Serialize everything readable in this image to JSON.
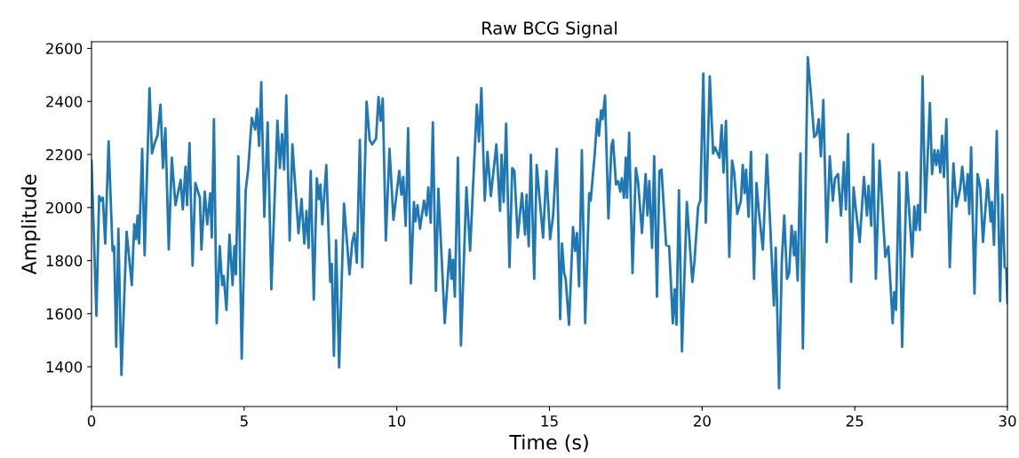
{
  "chart_data": {
    "type": "line",
    "title": "Raw BCG Signal",
    "xlabel": "Time (s)",
    "ylabel": "Amplitude",
    "x": [
      0,
      0.16,
      0.25,
      0.32,
      0.37,
      0.45,
      0.56,
      0.69,
      0.74,
      0.81,
      0.88,
      0.98,
      1.15,
      1.32,
      1.4,
      1.46,
      1.51,
      1.56,
      1.66,
      1.74,
      1.9,
      1.98,
      2.07,
      2.16,
      2.26,
      2.34,
      2.42,
      2.53,
      2.63,
      2.75,
      2.92,
      2.99,
      3.08,
      3.13,
      3.21,
      3.31,
      3.4,
      3.55,
      3.6,
      3.71,
      3.79,
      3.89,
      3.94,
      4.01,
      4.1,
      4.2,
      4.28,
      4.33,
      4.42,
      4.52,
      4.62,
      4.68,
      4.73,
      4.81,
      4.92,
      5.05,
      5.13,
      5.25,
      5.36,
      5.42,
      5.49,
      5.56,
      5.66,
      5.77,
      5.89,
      6.09,
      6.17,
      6.24,
      6.31,
      6.38,
      6.49,
      6.58,
      6.78,
      6.88,
      6.97,
      7.04,
      7.11,
      7.18,
      7.28,
      7.38,
      7.45,
      7.5,
      7.56,
      7.69,
      7.82,
      7.87,
      7.94,
      8.01,
      8.11,
      8.27,
      8.45,
      8.54,
      8.61,
      8.69,
      8.79,
      8.87,
      9.01,
      9.11,
      9.19,
      9.32,
      9.4,
      9.47,
      9.54,
      9.64,
      9.76,
      9.89,
      10.08,
      10.15,
      10.21,
      10.29,
      10.37,
      10.46,
      10.56,
      10.61,
      10.68,
      10.76,
      10.89,
      10.97,
      11.03,
      11.11,
      11.18,
      11.28,
      11.36,
      11.57,
      11.73,
      11.79,
      11.84,
      11.9,
      12.0,
      12.1,
      12.28,
      12.4,
      12.62,
      12.69,
      12.77,
      12.88,
      12.97,
      13.08,
      13.26,
      13.38,
      13.43,
      13.5,
      13.58,
      13.69,
      13.78,
      13.85,
      13.96,
      14.1,
      14.2,
      14.25,
      14.32,
      14.39,
      14.5,
      14.58,
      14.79,
      14.9,
      15.02,
      15.12,
      15.24,
      15.35,
      15.41,
      15.48,
      15.53,
      15.64,
      15.77,
      15.84,
      15.9,
      15.97,
      16.06,
      16.17,
      16.3,
      16.35,
      16.48,
      16.56,
      16.62,
      16.69,
      16.74,
      16.82,
      16.93,
      17.03,
      17.08,
      17.18,
      17.25,
      17.32,
      17.37,
      17.44,
      17.5,
      17.54,
      17.61,
      17.72,
      17.83,
      17.9,
      18.03,
      18.15,
      18.21,
      18.27,
      18.36,
      18.43,
      18.52,
      18.6,
      18.67,
      18.82,
      18.92,
      19.04,
      19.1,
      19.16,
      19.24,
      19.34,
      19.5,
      19.68,
      19.75,
      19.87,
      19.94,
      20.04,
      20.12,
      20.25,
      20.36,
      20.42,
      20.57,
      20.64,
      20.7,
      20.78,
      20.89,
      20.98,
      21.05,
      21.15,
      21.27,
      21.33,
      21.39,
      21.44,
      21.52,
      21.6,
      21.7,
      21.78,
      21.85,
      21.99,
      22.12,
      22.24,
      22.35,
      22.41,
      22.52,
      22.61,
      22.69,
      22.78,
      22.85,
      22.93,
      23.01,
      23.05,
      23.13,
      23.22,
      23.3,
      23.46,
      23.56,
      23.67,
      23.75,
      23.82,
      23.89,
      23.97,
      24.08,
      24.18,
      24.28,
      24.35,
      24.45,
      24.55,
      24.64,
      24.71,
      24.78,
      24.88,
      24.96,
      25.03,
      25.16,
      25.3,
      25.4,
      25.45,
      25.54,
      25.6,
      25.69,
      25.81,
      26.0,
      26.1,
      26.24,
      26.29,
      26.35,
      26.45,
      26.55,
      26.7,
      26.88,
      26.95,
      27.0,
      27.07,
      27.13,
      27.22,
      27.31,
      27.46,
      27.53,
      27.61,
      27.67,
      27.73,
      27.8,
      27.86,
      27.92,
      28.0,
      28.11,
      28.23,
      28.33,
      28.45,
      28.52,
      28.62,
      28.7,
      28.75,
      28.81,
      28.92,
      29.02,
      29.11,
      29.2,
      29.35,
      29.45,
      29.49,
      29.56,
      29.65,
      29.76,
      29.83,
      29.91,
      29.96,
      30.0
    ],
    "series": [
      {
        "color": "#1f77b4",
        "values": [
          2177,
          1592,
          2043,
          2026,
          2037,
          1864,
          2249,
          1837,
          1854,
          1475,
          1920,
          1369,
          1909,
          1708,
          1937,
          1881,
          1970,
          1864,
          2221,
          1820,
          2450,
          2204,
          2243,
          2271,
          2388,
          2149,
          2299,
          1842,
          2188,
          2009,
          2104,
          1993,
          2154,
          2009,
          2243,
          1781,
          2093,
          2037,
          1842,
          2060,
          1937,
          2054,
          1887,
          2333,
          1564,
          1854,
          1708,
          1742,
          1614,
          1898,
          1708,
          1854,
          1748,
          2193,
          1430,
          2065,
          2143,
          2338,
          2294,
          2372,
          2232,
          2472,
          1965,
          2321,
          1692,
          2327,
          2149,
          2277,
          2143,
          2422,
          1876,
          2238,
          1903,
          2032,
          1864,
          1987,
          1848,
          2138,
          1653,
          2110,
          2032,
          2087,
          1937,
          2160,
          1720,
          1787,
          1441,
          1876,
          1397,
          2015,
          1748,
          1870,
          1904,
          1792,
          2255,
          1775,
          2399,
          2255,
          2238,
          2260,
          2416,
          2327,
          2411,
          1876,
          2221,
          1954,
          2138,
          2048,
          2115,
          1931,
          2299,
          1714,
          2021,
          1948,
          2009,
          1920,
          2026,
          1970,
          2076,
          1943,
          2321,
          1686,
          2071,
          1564,
          1842,
          1731,
          1803,
          1664,
          2188,
          1480,
          2076,
          1837,
          2388,
          2249,
          2450,
          2026,
          2210,
          2043,
          2238,
          1987,
          2199,
          2021,
          2316,
          1775,
          2149,
          2138,
          1887,
          2054,
          1898,
          2048,
          1854,
          2199,
          1731,
          2160,
          1887,
          2138,
          1881,
          1970,
          2221,
          1580,
          1864,
          1753,
          1731,
          1558,
          1926,
          1837,
          1904,
          1703,
          2216,
          1564,
          2054,
          2026,
          2199,
          2333,
          2271,
          2366,
          2333,
          2422,
          1959,
          2232,
          2255,
          2087,
          2099,
          2060,
          2110,
          2037,
          2188,
          2037,
          2282,
          1753,
          2149,
          2099,
          1904,
          2126,
          1970,
          2099,
          1848,
          2193,
          1664,
          2138,
          2143,
          1859,
          1854,
          1564,
          1692,
          1558,
          2065,
          1458,
          2021,
          1720,
          1798,
          2004,
          2026,
          2505,
          1943,
          2494,
          2204,
          2227,
          2188,
          2310,
          2132,
          2327,
          1814,
          2177,
          2132,
          1976,
          2026,
          2160,
          2054,
          2143,
          1965,
          2210,
          1731,
          2093,
          1993,
          1842,
          2199,
          1909,
          1631,
          1848,
          1319,
          1798,
          1970,
          1731,
          1753,
          1931,
          1820,
          1909,
          1725,
          2204,
          1469,
          2567,
          2433,
          2266,
          2277,
          2333,
          2193,
          2405,
          1870,
          2193,
          2026,
          2110,
          2126,
          1970,
          2171,
          1993,
          2277,
          1720,
          2076,
          1998,
          1870,
          2115,
          1970,
          2082,
          1931,
          2238,
          1731,
          2177,
          1814,
          1853,
          1564,
          1681,
          1614,
          2132,
          1475,
          2132,
          1814,
          2004,
          1915,
          2009,
          1915,
          2494,
          1982,
          2394,
          2126,
          2216,
          2160,
          2216,
          2132,
          2271,
          2115,
          2333,
          1775,
          2166,
          2004,
          2071,
          2154,
          2026,
          2126,
          1976,
          2227,
          1675,
          2126,
          2076,
          1870,
          2104,
          1948,
          2021,
          1859,
          2288,
          1647,
          2048,
          1775,
          1770,
          1640
        ]
      }
    ],
    "xlim": [
      0,
      30
    ],
    "xticks": [
      0,
      5,
      10,
      15,
      20,
      25,
      30
    ],
    "ylim": [
      1250,
      2625
    ],
    "yticks": [
      1400,
      1600,
      1800,
      2000,
      2200,
      2400,
      2600
    ],
    "grid": false,
    "legend": false
  }
}
